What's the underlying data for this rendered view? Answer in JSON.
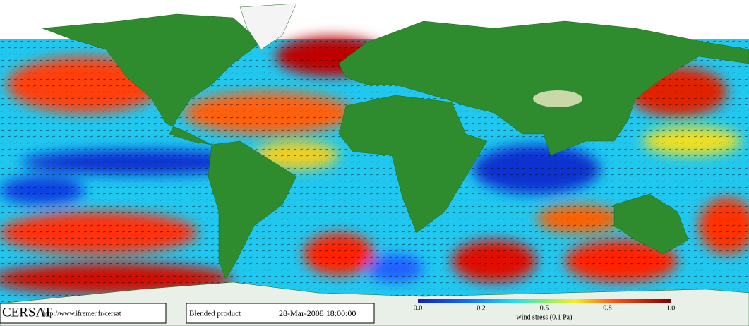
{
  "footer": {
    "brand": "CERSAT",
    "url": "http://www.ifremer.fr/cersat",
    "product": "Blended product",
    "datetime": "28-Mar-2008 18:00:00"
  },
  "colorbar": {
    "ticks": [
      "0.0",
      "0.2",
      "0.5",
      "0.8",
      "1.0"
    ],
    "label": "wind stress (0.1 Pa)"
  }
}
